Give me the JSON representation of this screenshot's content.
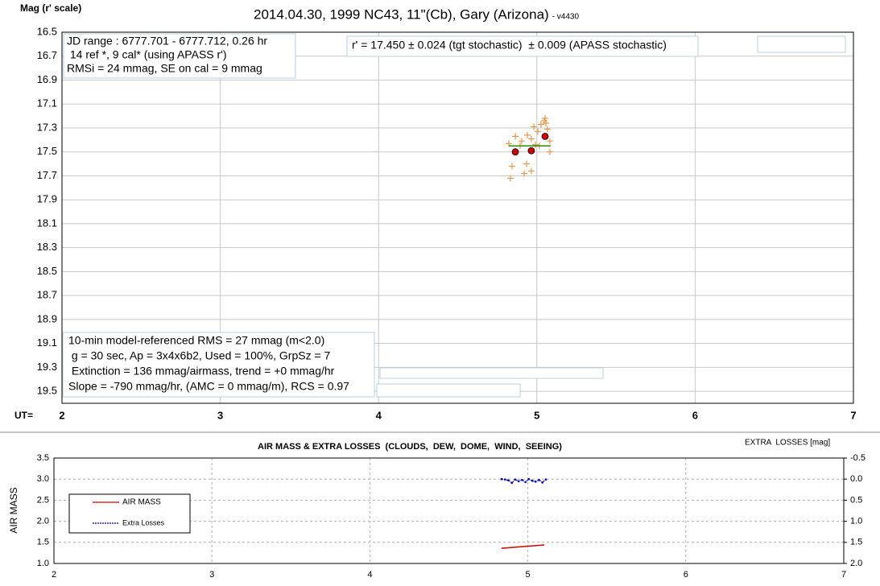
{
  "chart_data": [
    {
      "type": "scatter",
      "title": "2014.04.30, 1999 NC43, 11\"(Cb), Gary (Arizona)",
      "subtitle": "- v4430",
      "y_label": "Mag (r' scale)",
      "x_label": "UT=",
      "xlim": [
        2,
        7
      ],
      "xticks": [
        2,
        3,
        4,
        5,
        6,
        7
      ],
      "ylim": [
        19.6,
        16.5
      ],
      "yticks": [
        16.5,
        16.7,
        16.9,
        17.1,
        17.3,
        17.5,
        17.7,
        17.9,
        18.1,
        18.3,
        18.5,
        18.7,
        18.9,
        19.1,
        19.3,
        19.5
      ],
      "grid": true,
      "annotations": [
        [
          "JD range : 6777.701 - 6777.712, 0.26 hr",
          " 14 ref *, 9 cal* (using APASS r')",
          "RMSi = 24 mmag, SE on cal = 9 mmag"
        ],
        [
          "r' = 17.450 ± 0.024 (tgt stochastic)  ± 0.009 (APASS stochastic)"
        ],
        [
          "10-min model-referenced RMS = 27 mmag (m<2.0)",
          " g = 30 sec, Ap = 3x4x6b2, Used = 100%, GrpSz = 7",
          " Extinction = 136 mmag/airmass, trend = +0 mmag/hr",
          "Slope = -790 mmag/hr, (AMC = 0 mmag/m), RCS = 0.97"
        ]
      ],
      "series": [
        {
          "marker": "plus",
          "color": "#e09a50",
          "x": [
            4.823,
            4.843,
            4.833,
            4.864,
            4.894,
            4.904,
            4.92,
            4.935,
            4.94,
            4.965,
            4.965,
            4.981,
            4.991,
            5.006,
            5.016,
            5.026,
            5.047,
            5.052,
            5.057,
            5.067,
            5.082,
            5.082
          ],
          "values": [
            17.43,
            17.62,
            17.72,
            17.37,
            17.45,
            17.41,
            17.68,
            17.6,
            17.36,
            17.66,
            17.39,
            17.29,
            17.44,
            17.33,
            17.45,
            17.27,
            17.24,
            17.22,
            17.26,
            17.31,
            17.41,
            17.5
          ]
        },
        {
          "marker": "line",
          "color": "#2e8b00",
          "x": [
            4.823,
            5.087
          ],
          "values": [
            17.45,
            17.45
          ]
        },
        {
          "marker": "circle",
          "color": "#cc0000",
          "x": [
            4.864,
            4.965,
            5.052
          ],
          "values": [
            17.5,
            17.49,
            17.37
          ]
        }
      ]
    },
    {
      "type": "line",
      "title": "AIR MASS & EXTRA LOSSES  (CLOUDS,  DEW,  DOME,  WIND,  SEEING)",
      "y_label": "AIR MASS",
      "y2_label": "EXTRA  LOSSES [mag]",
      "xlim": [
        2,
        7
      ],
      "xticks": [
        2,
        3,
        4,
        5,
        6,
        7
      ],
      "ylim": [
        1.0,
        3.5
      ],
      "yticks": [
        {
          "value": 1.0,
          "label": "1.0"
        },
        1.5,
        {
          "value": 2.0,
          "label": "2.0"
        },
        2.5,
        {
          "value": 3.0,
          "label": "3.0"
        },
        3.5
      ],
      "y2lim": [
        2.0,
        -0.5
      ],
      "y2ticks": [
        {
          "value": 2.0,
          "label": "2.0"
        },
        1.5,
        {
          "value": 1.0,
          "label": "1.0"
        },
        0.5,
        {
          "value": 0.0,
          "label": "0.0"
        },
        -0.5
      ],
      "grid": true,
      "legend": "left",
      "series": [
        {
          "name": "AIR MASS",
          "marker": "line",
          "color": "#cc0000",
          "x": [
            4.834,
            4.9,
            4.97,
            5.04,
            5.104
          ],
          "values": [
            1.36,
            1.38,
            1.4,
            1.42,
            1.44
          ]
        },
        {
          "name": "Extra Losses",
          "marker": "dotted",
          "color": "#0000aa",
          "axis": "y2",
          "x": [
            4.834,
            4.856,
            4.877,
            4.899,
            4.92,
            4.942,
            4.963,
            4.985,
            5.006,
            5.028,
            5.049,
            5.071,
            5.092,
            5.114
          ],
          "values": [
            0.0,
            0.01,
            0.03,
            0.09,
            0.01,
            0.05,
            0.02,
            0.07,
            0.0,
            0.04,
            0.06,
            0.02,
            0.08,
            0.01
          ]
        }
      ]
    }
  ]
}
